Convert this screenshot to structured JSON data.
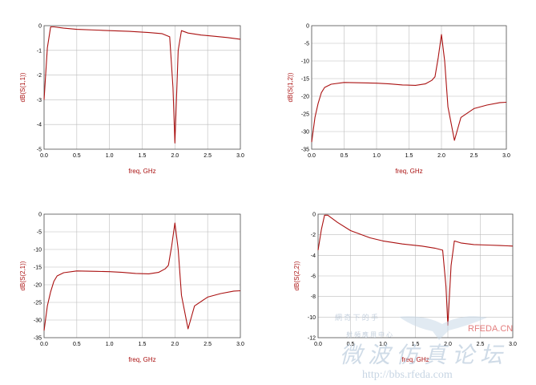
{
  "plot_color": "#aa1111",
  "chart_data": [
    {
      "type": "line",
      "xlabel": "freq, GHz",
      "ylabel": "dB(S(1,1))",
      "xlim": [
        0,
        3
      ],
      "ylim": [
        -5,
        0
      ],
      "xticks": [
        0.0,
        0.5,
        1.0,
        1.5,
        2.0,
        2.5,
        3.0
      ],
      "xtick_labels": [
        "0.0",
        "0.5",
        "1.0",
        "1.5",
        "2.0",
        "2.5",
        "3.0"
      ],
      "yticks": [
        -5,
        -4,
        -3,
        -2,
        -1,
        0
      ],
      "ytick_labels": [
        "-5",
        "-4",
        "-3",
        "-2",
        "-1",
        "0"
      ],
      "grid": true,
      "series": [
        {
          "x": [
            0.0,
            0.05,
            0.1,
            0.15,
            0.3,
            0.5,
            0.8,
            1.0,
            1.3,
            1.6,
            1.8,
            1.92,
            1.97,
            2.0,
            2.05,
            2.1,
            2.2,
            2.4,
            2.6,
            2.8,
            3.0
          ],
          "y": [
            -3.0,
            -0.9,
            -0.05,
            -0.05,
            -0.1,
            -0.15,
            -0.18,
            -0.2,
            -0.23,
            -0.28,
            -0.32,
            -0.45,
            -2.5,
            -4.75,
            -1.0,
            -0.2,
            -0.3,
            -0.38,
            -0.43,
            -0.48,
            -0.55
          ]
        }
      ]
    },
    {
      "type": "line",
      "xlabel": "freq, GHz",
      "ylabel": "dB(S(1,2))",
      "xlim": [
        0,
        3
      ],
      "ylim": [
        -35,
        0
      ],
      "xticks": [
        0.0,
        0.5,
        1.0,
        1.5,
        2.0,
        2.5,
        3.0
      ],
      "xtick_labels": [
        "0.0",
        "0.5",
        "1.0",
        "1.5",
        "2.0",
        "2.5",
        "3.0"
      ],
      "yticks": [
        -35,
        -30,
        -25,
        -20,
        -15,
        -10,
        -5,
        0
      ],
      "ytick_labels": [
        "-35",
        "-30",
        "-25",
        "-20",
        "-15",
        "-10",
        "-5",
        "0"
      ],
      "grid": true,
      "series": [
        {
          "x": [
            0.0,
            0.05,
            0.1,
            0.15,
            0.2,
            0.3,
            0.5,
            0.8,
            1.0,
            1.2,
            1.4,
            1.6,
            1.75,
            1.85,
            1.9,
            1.95,
            2.0,
            2.05,
            2.1,
            2.2,
            2.3,
            2.5,
            2.7,
            2.9,
            3.0
          ],
          "y": [
            -33,
            -26,
            -22,
            -19,
            -17.5,
            -16.6,
            -16.1,
            -16.2,
            -16.3,
            -16.5,
            -16.8,
            -16.9,
            -16.5,
            -15.5,
            -14.5,
            -9,
            -2.5,
            -10,
            -23,
            -32.5,
            -26,
            -23.5,
            -22.5,
            -21.8,
            -21.7
          ]
        }
      ]
    },
    {
      "type": "line",
      "xlabel": "freq, GHz",
      "ylabel": "dB(S(2,1))",
      "xlim": [
        0,
        3
      ],
      "ylim": [
        -35,
        0
      ],
      "xticks": [
        0.0,
        0.5,
        1.0,
        1.5,
        2.0,
        2.5,
        3.0
      ],
      "xtick_labels": [
        "0.0",
        "0.5",
        "1.0",
        "1.5",
        "2.0",
        "2.5",
        "3.0"
      ],
      "yticks": [
        -35,
        -30,
        -25,
        -20,
        -15,
        -10,
        -5,
        0
      ],
      "ytick_labels": [
        "-35",
        "-30",
        "-25",
        "-20",
        "-15",
        "-10",
        "-5",
        "0"
      ],
      "grid": true,
      "series": [
        {
          "x": [
            0.0,
            0.05,
            0.1,
            0.15,
            0.2,
            0.3,
            0.5,
            0.8,
            1.0,
            1.2,
            1.4,
            1.6,
            1.75,
            1.85,
            1.9,
            1.95,
            2.0,
            2.05,
            2.1,
            2.2,
            2.3,
            2.5,
            2.7,
            2.9,
            3.0
          ],
          "y": [
            -33,
            -26,
            -22,
            -19,
            -17.5,
            -16.6,
            -16.1,
            -16.2,
            -16.3,
            -16.5,
            -16.8,
            -16.9,
            -16.5,
            -15.5,
            -14.5,
            -9,
            -2.5,
            -10,
            -23,
            -32.5,
            -26,
            -23.5,
            -22.5,
            -21.8,
            -21.7
          ]
        }
      ]
    },
    {
      "type": "line",
      "xlabel": "freq, GHz",
      "ylabel": "dB(S(2,2))",
      "xlim": [
        0,
        3
      ],
      "ylim": [
        -12,
        0
      ],
      "xticks": [
        0.0,
        0.5,
        1.0,
        1.5,
        2.0,
        2.5,
        3.0
      ],
      "xtick_labels": [
        "0.0",
        "0.5",
        "1.0",
        "1.5",
        "2.0",
        "2.5",
        "3.0"
      ],
      "yticks": [
        -12,
        -10,
        -8,
        -6,
        -4,
        -2,
        0
      ],
      "ytick_labels": [
        "-12",
        "-10",
        "-8",
        "-6",
        "-4",
        "-2",
        "0"
      ],
      "grid": true,
      "series": [
        {
          "x": [
            0.0,
            0.05,
            0.1,
            0.15,
            0.3,
            0.5,
            0.8,
            1.0,
            1.3,
            1.6,
            1.8,
            1.92,
            1.97,
            2.0,
            2.05,
            2.1,
            2.2,
            2.4,
            2.6,
            2.8,
            3.0
          ],
          "y": [
            -3.5,
            -1.5,
            -0.1,
            -0.1,
            -0.8,
            -1.6,
            -2.3,
            -2.6,
            -2.9,
            -3.1,
            -3.3,
            -3.5,
            -7,
            -10.8,
            -5,
            -2.6,
            -2.8,
            -2.95,
            -3.0,
            -3.05,
            -3.1
          ]
        }
      ]
    }
  ],
  "watermark": {
    "line1": "網 奇 下 的 手",
    "brand": "RFEDA.CN",
    "line2": "射 頻 應 用 中 心",
    "chinese": "微 波 仿 真 论 坛",
    "url": "http://bbs.rfeda.com"
  }
}
